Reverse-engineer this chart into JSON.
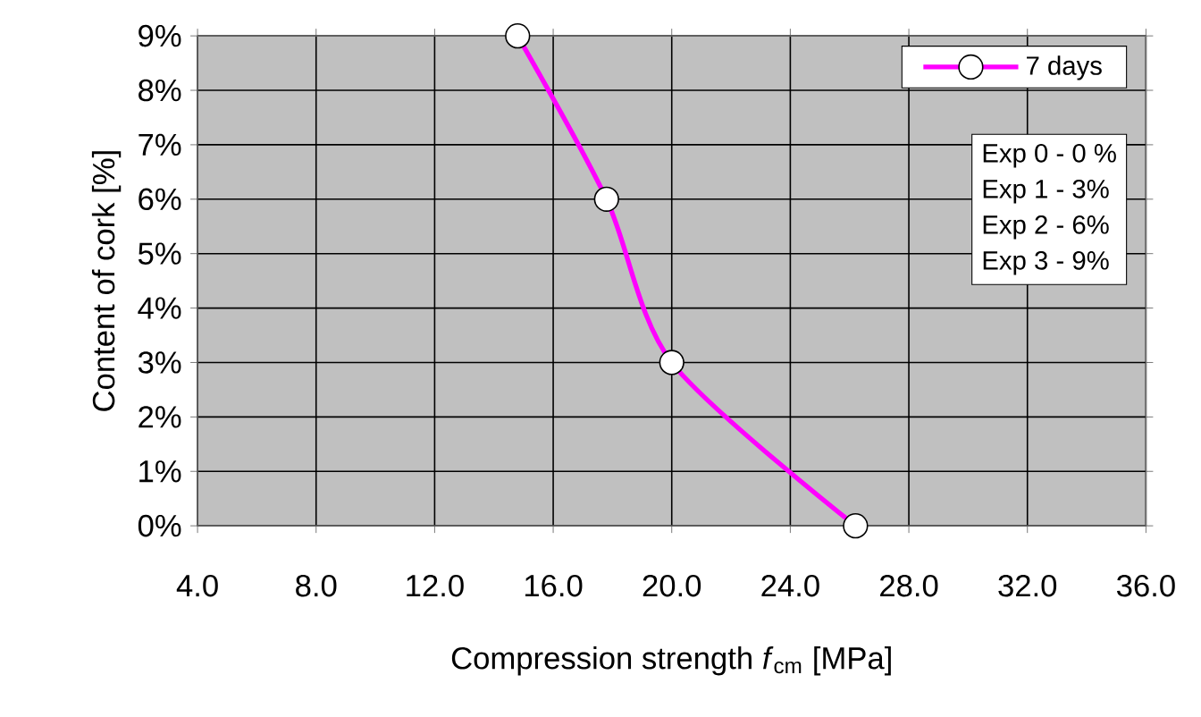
{
  "chart_data": {
    "type": "line",
    "xlabel": "Compression strength *f*$_{cm}$ [MPa]",
    "ylabel": "Content of cork [%]",
    "series": [
      {
        "name": "7 days",
        "color": "#ff00ff",
        "x": [
          26.2,
          20.0,
          17.8,
          14.8
        ],
        "values": [
          0,
          3,
          6,
          9
        ]
      }
    ],
    "xlim": [
      4,
      36
    ],
    "ylim": [
      0,
      9
    ],
    "xticks": [
      {
        "value": 4,
        "label": "4.0"
      },
      {
        "value": 8,
        "label": "8.0"
      },
      {
        "value": 12,
        "label": "12.0"
      },
      {
        "value": 16,
        "label": "16.0"
      },
      {
        "value": 20,
        "label": "20.0"
      },
      {
        "value": 24,
        "label": "24.0"
      },
      {
        "value": 28,
        "label": "28.0"
      },
      {
        "value": 32,
        "label": "32.0"
      },
      {
        "value": 36,
        "label": "36.0"
      }
    ],
    "yticks": [
      {
        "value": 0,
        "label": "0%"
      },
      {
        "value": 1,
        "label": "1%"
      },
      {
        "value": 2,
        "label": "2%"
      },
      {
        "value": 3,
        "label": "3%"
      },
      {
        "value": 4,
        "label": "4%"
      },
      {
        "value": 5,
        "label": "5%"
      },
      {
        "value": 6,
        "label": "6%"
      },
      {
        "value": 7,
        "label": "7%"
      },
      {
        "value": 8,
        "label": "8%"
      },
      {
        "value": 9,
        "label": "9%"
      }
    ],
    "grid": true,
    "legend": "top right",
    "marker": "circle",
    "annotations": [
      "Exp 0 - 0 %",
      "Exp 1 - 3%",
      "Exp 2 - 6%",
      "Exp 3 - 9%"
    ]
  }
}
